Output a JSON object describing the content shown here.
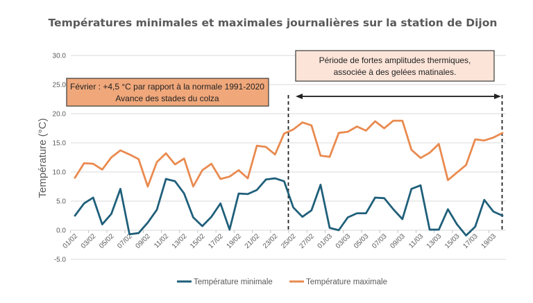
{
  "chart_data": {
    "type": "line",
    "title": "Températures minimales et maximales journalières sur la station de Dijon",
    "xlabel": "",
    "ylabel": "Température (°C)",
    "ylim": [
      -5,
      30
    ],
    "yticks": [
      -5,
      0,
      5,
      10,
      15,
      20,
      25,
      30
    ],
    "ytick_labels": [
      "-5.0",
      "0.0",
      "5.0",
      "10.0",
      "15.0",
      "20.0",
      "25.0",
      "30.0"
    ],
    "grid": true,
    "legend_position": "bottom",
    "x": [
      "01/02",
      "02/02",
      "03/02",
      "04/02",
      "05/02",
      "06/02",
      "07/02",
      "08/02",
      "09/02",
      "10/02",
      "11/02",
      "12/02",
      "13/02",
      "14/02",
      "15/02",
      "16/02",
      "17/02",
      "18/02",
      "19/02",
      "20/02",
      "21/02",
      "22/02",
      "23/02",
      "24/02",
      "25/02",
      "26/02",
      "27/02",
      "28/02",
      "01/03",
      "02/03",
      "03/03",
      "04/03",
      "05/03",
      "06/03",
      "07/03",
      "08/03",
      "09/03",
      "10/03",
      "11/03",
      "12/03",
      "13/03",
      "14/03",
      "15/03",
      "16/03",
      "17/03",
      "18/03",
      "19/03",
      "20/03"
    ],
    "xtick_labels": [
      "01/02",
      "03/02",
      "05/02",
      "07/02",
      "09/02",
      "11/02",
      "13/02",
      "15/02",
      "17/02",
      "19/02",
      "21/02",
      "23/02",
      "25/02",
      "27/02",
      "01/03",
      "03/03",
      "05/03",
      "07/03",
      "09/03",
      "11/03",
      "13/03",
      "15/03",
      "17/03",
      "19/03"
    ],
    "series": [
      {
        "name": "Température minimale",
        "color": "#1f5f7a",
        "values": [
          2.5,
          4.6,
          5.6,
          1.0,
          2.8,
          7.1,
          -0.7,
          -0.5,
          1.3,
          3.5,
          8.8,
          8.4,
          6.3,
          2.2,
          0.7,
          2.3,
          4.6,
          0.1,
          6.3,
          6.2,
          6.9,
          8.7,
          8.9,
          8.4,
          3.9,
          2.3,
          3.4,
          7.8,
          0.4,
          0.0,
          2.2,
          2.9,
          2.9,
          5.6,
          5.5,
          3.6,
          1.9,
          7.1,
          7.7,
          0.1,
          0.1,
          3.6,
          1.0,
          -0.9,
          0.6,
          5.2,
          3.2,
          2.5
        ]
      },
      {
        "name": "Température maximale",
        "color": "#e98a4f",
        "values": [
          9.0,
          11.5,
          11.4,
          10.4,
          12.5,
          13.7,
          13.0,
          12.2,
          7.5,
          11.7,
          13.2,
          11.3,
          12.3,
          7.5,
          10.3,
          11.4,
          8.8,
          9.2,
          10.3,
          8.9,
          14.5,
          14.3,
          13.0,
          16.6,
          17.3,
          18.5,
          18.0,
          12.8,
          12.6,
          16.7,
          16.9,
          17.8,
          17.1,
          18.7,
          17.5,
          18.8,
          18.8,
          13.8,
          12.4,
          13.3,
          14.8,
          8.6,
          9.9,
          11.2,
          15.6,
          15.4,
          15.9,
          16.7
        ]
      }
    ],
    "annotations": [
      {
        "id": "february-note",
        "lines": [
          "Février : +4,5 °C par rapport à la normale 1991-2020",
          "Avance des stades du colza"
        ],
        "fill": "#f0a77a"
      },
      {
        "id": "period-note",
        "lines": [
          "Période de fortes amplitudes thermiques,",
          "associée à des gelées matinales."
        ],
        "fill": "#fce4d8",
        "span_start": "25/02",
        "span_end": "20/03"
      }
    ]
  }
}
